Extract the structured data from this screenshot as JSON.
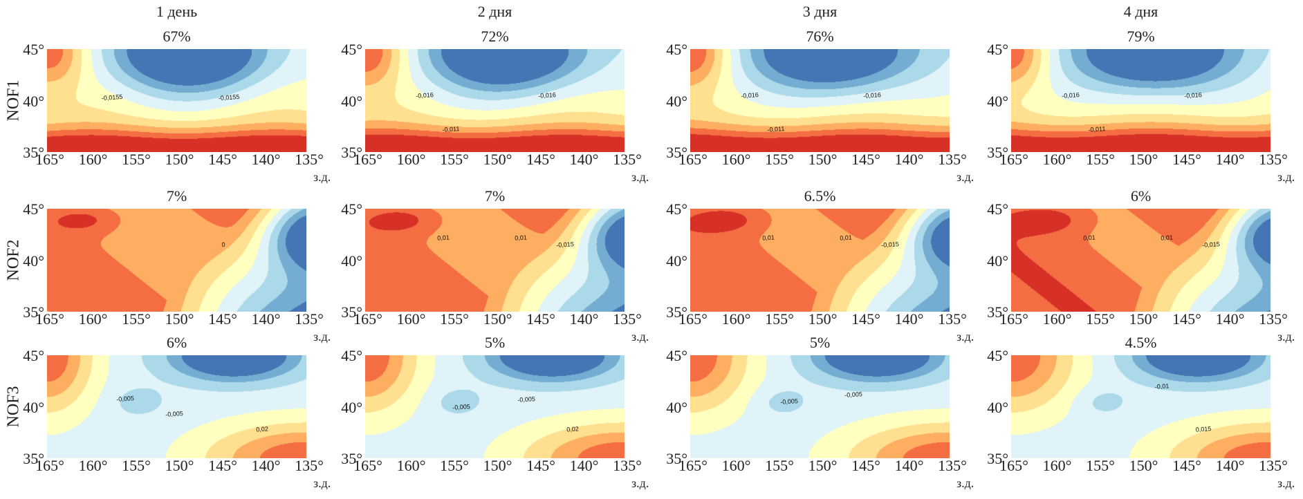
{
  "chart_data": {
    "type": "heatmap",
    "subtype": "filled-contour",
    "colormap": [
      "#d73027",
      "#f46d43",
      "#fdae61",
      "#fee090",
      "#ffffbf",
      "#e0f3f8",
      "#abd9e9",
      "#74add1",
      "#4575b4"
    ],
    "columns": [
      "1 день",
      "2 дня",
      "3 дня",
      "4 дня"
    ],
    "rows": [
      "NOF1",
      "NOF2",
      "NOF3"
    ],
    "x_ticks": [
      "165°",
      "160°",
      "155°",
      "150°",
      "145°",
      "140°",
      "135°"
    ],
    "y_ticks": [
      "45°",
      "40°",
      "35°"
    ],
    "x_unit": "з.д.",
    "xlim": [
      165,
      135
    ],
    "ylim": [
      35,
      45
    ],
    "panels": [
      [
        {
          "percent": "67%",
          "contour_labels": [
            "-0,0155",
            "-0,0155"
          ]
        },
        {
          "percent": "72%",
          "contour_labels": [
            "-0,016",
            "-0,016",
            "-0,011"
          ]
        },
        {
          "percent": "76%",
          "contour_labels": [
            "-0,016",
            "-0,016",
            "-0,011"
          ]
        },
        {
          "percent": "79%",
          "contour_labels": [
            "-0,016",
            "-0,016",
            "-0,011"
          ]
        }
      ],
      [
        {
          "percent": "7%",
          "contour_labels": [
            "0"
          ]
        },
        {
          "percent": "7%",
          "contour_labels": [
            "0,01",
            "0,01",
            "-0,015"
          ]
        },
        {
          "percent": "6.5%",
          "contour_labels": [
            "0,01",
            "0,01",
            "-0,015"
          ]
        },
        {
          "percent": "6%",
          "contour_labels": [
            "0,01",
            "0,01",
            "-0,015"
          ]
        }
      ],
      [
        {
          "percent": "6%",
          "contour_labels": [
            "-0,005",
            "-0,005",
            "0,02"
          ]
        },
        {
          "percent": "5%",
          "contour_labels": [
            "-0,005",
            "-0,005",
            "0,02"
          ]
        },
        {
          "percent": "5%",
          "contour_labels": [
            "-0,005",
            "-0,005"
          ]
        },
        {
          "percent": "4.5%",
          "contour_labels": [
            "-0,01",
            "0,015"
          ]
        }
      ]
    ]
  }
}
